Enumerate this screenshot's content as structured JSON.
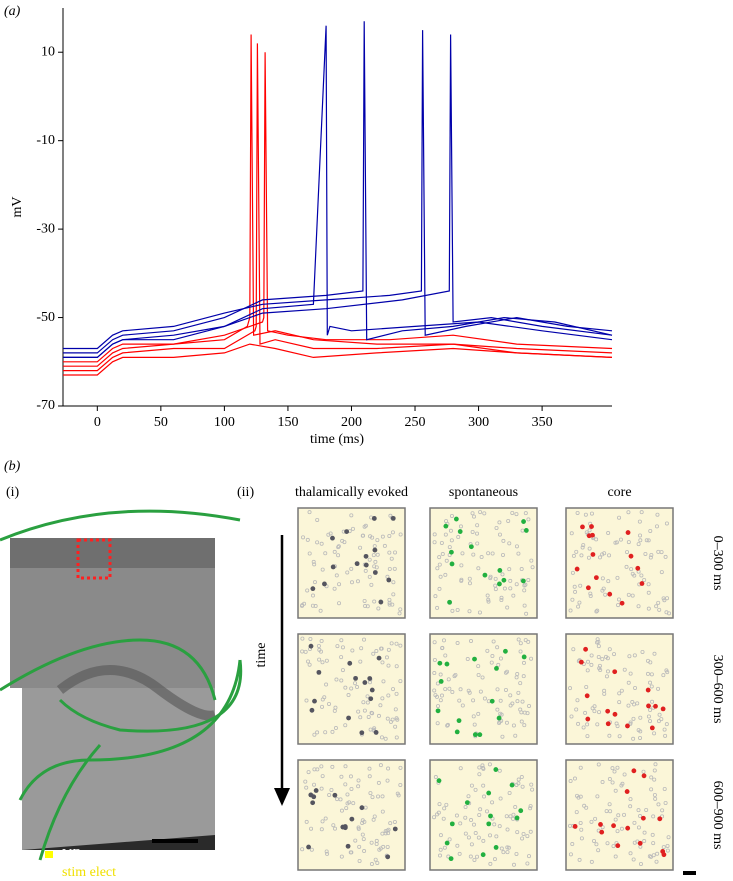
{
  "panel_a_label": "(a)",
  "chart_data": {
    "type": "line",
    "ylabel": "mV",
    "xlabel": "time (ms)",
    "xlim": [
      -27,
      405
    ],
    "ylim": [
      -70,
      20
    ],
    "xticks": [
      0,
      50,
      100,
      150,
      200,
      250,
      300,
      350
    ],
    "yticks": [
      -70,
      -50,
      -30,
      -10,
      10
    ],
    "series": [
      {
        "color": "#ff0000",
        "x": [
          -27,
          0,
          12,
          20,
          60,
          100,
          118,
          120,
          121,
          123,
          140,
          170,
          220,
          280,
          330,
          405
        ],
        "values": [
          -61,
          -61,
          -58,
          -57,
          -56,
          -55,
          -52,
          -50,
          14,
          -54,
          -53,
          -55,
          -56,
          -56,
          -57,
          -58
        ]
      },
      {
        "color": "#ff0000",
        "x": [
          -27,
          0,
          12,
          20,
          60,
          100,
          124,
          125,
          126,
          128,
          140,
          170,
          220,
          280,
          330,
          405
        ],
        "values": [
          -62,
          -62,
          -59,
          -58,
          -57,
          -57,
          -53,
          -52,
          12,
          -56,
          -55,
          -57,
          -57,
          -56,
          -58,
          -59
        ]
      },
      {
        "color": "#ff0000",
        "x": [
          -27,
          0,
          12,
          20,
          60,
          100,
          130,
          131,
          132,
          134,
          150,
          180,
          230,
          280,
          330,
          405
        ],
        "values": [
          -60,
          -60,
          -57,
          -56,
          -56,
          -54,
          -51,
          -50,
          10,
          -53,
          -54,
          -55,
          -55,
          -54,
          -56,
          -57
        ]
      },
      {
        "color": "#ff0000",
        "x": [
          -27,
          0,
          12,
          20,
          60,
          100,
          120,
          140,
          170,
          220,
          280,
          330,
          405
        ],
        "values": [
          -63,
          -63,
          -60,
          -59,
          -59,
          -58,
          -56,
          -57,
          -59,
          -58,
          -57,
          -58,
          -59
        ]
      },
      {
        "color": "#0000aa",
        "x": [
          -27,
          0,
          12,
          20,
          60,
          100,
          130,
          170,
          180,
          181,
          183,
          200,
          250,
          300,
          350,
          405
        ],
        "values": [
          -59,
          -59,
          -56,
          -55,
          -54,
          -52,
          -48,
          -47,
          16,
          -54,
          -52,
          -53,
          -52,
          -51,
          -53,
          -55
        ]
      },
      {
        "color": "#0000aa",
        "x": [
          -27,
          0,
          12,
          20,
          60,
          100,
          130,
          180,
          209,
          210,
          212,
          240,
          280,
          320,
          360,
          405
        ],
        "values": [
          -58,
          -58,
          -55,
          -54,
          -53,
          -50,
          -46,
          -45,
          -44,
          17,
          -55,
          -53,
          -52,
          -50,
          -51,
          -54
        ]
      },
      {
        "color": "#0000aa",
        "x": [
          -27,
          0,
          12,
          20,
          60,
          100,
          130,
          180,
          230,
          255,
          256,
          258,
          290,
          330,
          370,
          405
        ],
        "values": [
          -57,
          -57,
          -54,
          -53,
          -52,
          -49,
          -47,
          -46,
          -45,
          -44,
          15,
          -54,
          -52,
          -50,
          -52,
          -53
        ]
      },
      {
        "color": "#0000aa",
        "x": [
          -27,
          0,
          12,
          20,
          60,
          100,
          130,
          180,
          240,
          277,
          278,
          280,
          310,
          350,
          405
        ],
        "values": [
          -59,
          -59,
          -56,
          -55,
          -55,
          -52,
          -49,
          -48,
          -46,
          -44,
          14,
          -51,
          -50,
          -52,
          -54
        ]
      }
    ]
  },
  "panel_b": {
    "label": "(b)",
    "sub_i": "(i)",
    "sub_ii": "(ii)",
    "columns": [
      "thalamically evoked",
      "spontaneous",
      "core"
    ],
    "rows": [
      "0–300 ms",
      "300–600 ms",
      "600–900 ms"
    ],
    "time_label": "time",
    "vb_label": "VB",
    "stim_label": "stim elect"
  }
}
